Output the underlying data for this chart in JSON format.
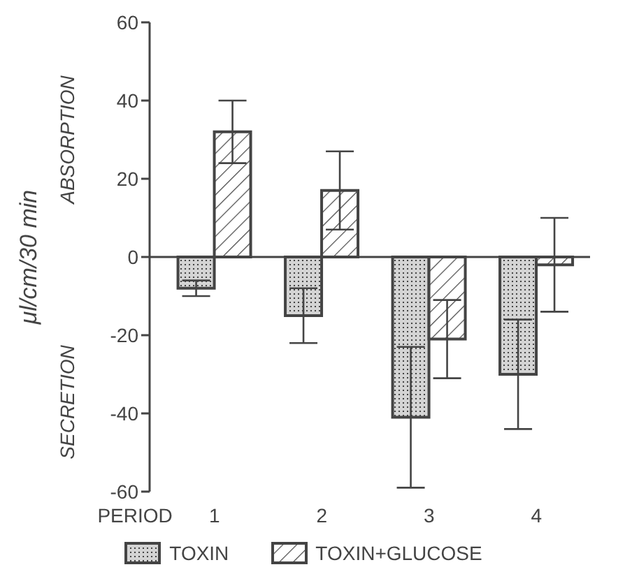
{
  "chart_data": {
    "type": "bar",
    "xlabel": "PERIOD",
    "ylabel": "μl/cm/30 min",
    "annotations": [
      "ABSORPTION",
      "SECRETION"
    ],
    "categories": [
      "1",
      "2",
      "3",
      "4"
    ],
    "series": [
      {
        "name": "TOXIN",
        "color": "#444444",
        "values": [
          -8,
          -15,
          -41,
          -30
        ],
        "errors": [
          2,
          7,
          18,
          14
        ]
      },
      {
        "name": "TOXIN+GLUCOSE",
        "color": "#444444",
        "values": [
          32,
          17,
          -21,
          -2
        ],
        "errors": [
          8,
          10,
          10,
          12
        ]
      }
    ],
    "ylim": [
      -60,
      60
    ],
    "yticks": [
      -60,
      -40,
      -20,
      0,
      20,
      40,
      60
    ],
    "ref_lines": [
      {
        "axis": "y",
        "value": 0
      }
    ],
    "grid": false,
    "legend": "bottom"
  }
}
